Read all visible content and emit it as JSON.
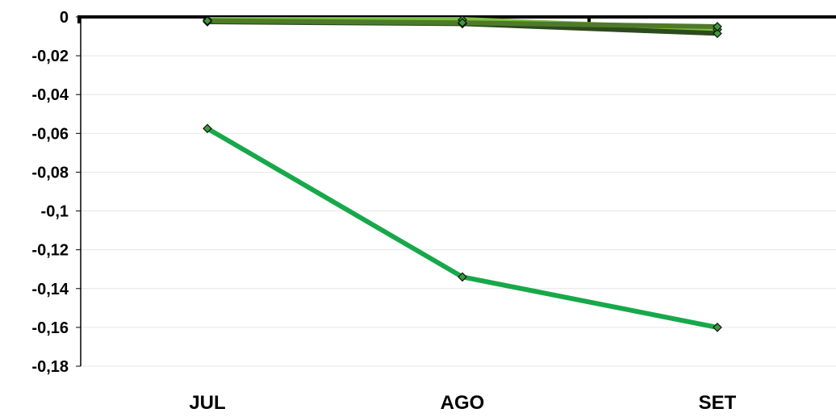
{
  "chart_data": {
    "type": "line",
    "title": "",
    "xlabel": "",
    "ylabel": "",
    "categories": [
      "JUL",
      "AGO",
      "SET"
    ],
    "ylim": [
      -0.18,
      0
    ],
    "yticks": [
      0,
      -0.02,
      -0.04,
      -0.06,
      -0.08,
      -0.1,
      -0.12,
      -0.14,
      -0.16,
      -0.18
    ],
    "ytick_labels": [
      "0",
      "-0,02",
      "-0,04",
      "-0,06",
      "-0,08",
      "-0,1",
      "-0,12",
      "-0,14",
      "-0,16",
      "-0,18"
    ],
    "grid": true,
    "legend": "none",
    "marker": "diamond",
    "series": [
      {
        "values": [
          -0.0575,
          -0.134,
          -0.16
        ],
        "color": "#17a84a"
      },
      {
        "values": [
          -0.0015,
          -0.0015,
          -0.0065
        ],
        "color": "#7cc142"
      },
      {
        "values": [
          -0.0025,
          -0.0035,
          -0.0085
        ],
        "color": "#2d4a1e"
      },
      {
        "values": [
          -0.002,
          -0.003,
          -0.005
        ],
        "color": "#4e7a2a"
      }
    ],
    "colors": {
      "axis": "#000000",
      "grid": "#e6e6e6",
      "marker_fill": "#3c9a3c",
      "marker_stroke": "#111111"
    }
  }
}
